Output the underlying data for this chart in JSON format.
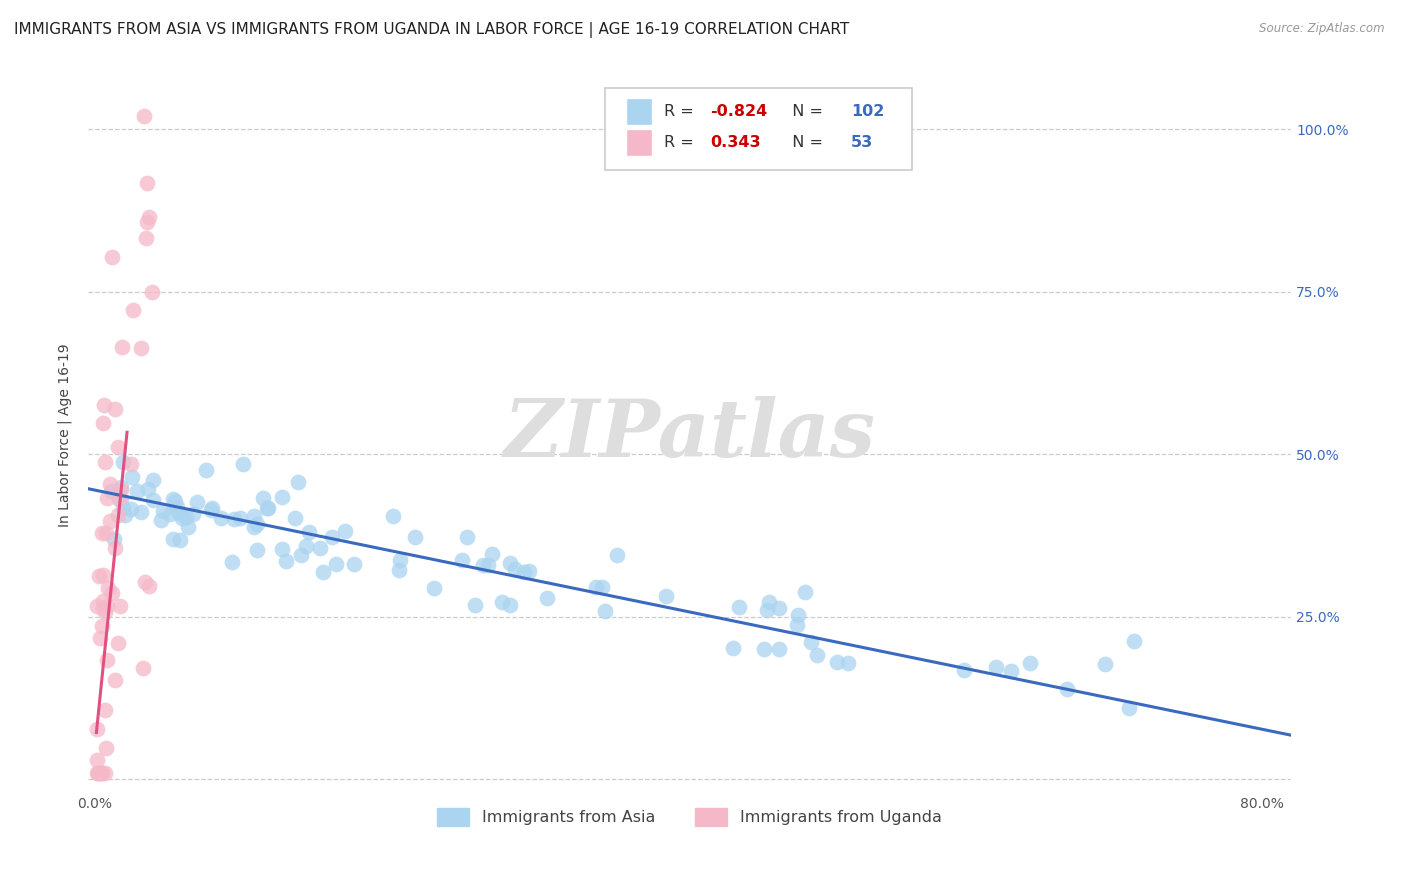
{
  "title": "IMMIGRANTS FROM ASIA VS IMMIGRANTS FROM UGANDA IN LABOR FORCE | AGE 16-19 CORRELATION CHART",
  "source": "Source: ZipAtlas.com",
  "ylabel": "In Labor Force | Age 16-19",
  "xlim": [
    -0.005,
    0.82
  ],
  "ylim": [
    -0.02,
    1.08
  ],
  "xtick_positions": [
    0.0,
    0.8
  ],
  "xticklabels": [
    "0.0%",
    "80.0%"
  ],
  "ytick_positions": [
    0.0,
    0.25,
    0.5,
    0.75,
    1.0
  ],
  "ytick_labels_right": [
    "",
    "25.0%",
    "50.0%",
    "75.0%",
    "100.0%"
  ],
  "watermark": "ZIPatlas",
  "legend_R_blue": "-0.824",
  "legend_N_blue": "102",
  "legend_R_pink": "0.343",
  "legend_N_pink": "53",
  "legend_label_blue": "Immigrants from Asia",
  "legend_label_pink": "Immigrants from Uganda",
  "blue_scatter_color": "#aad4f0",
  "pink_scatter_color": "#f5b8c8",
  "blue_line_color": "#3a6abf",
  "pink_line_color": "#e05080",
  "grid_color": "#cccccc",
  "background_color": "#ffffff",
  "title_fontsize": 11,
  "tick_fontsize": 10,
  "ylabel_fontsize": 10,
  "legend_R_color": "#cc0000",
  "legend_N_color": "#3a6abf",
  "legend_text_color": "#333333",
  "right_tick_color": "#3a6abf",
  "blue_trend_intercept": 0.445,
  "blue_trend_slope": -0.46,
  "pink_trend_intercept": 0.05,
  "pink_trend_slope": 22.0
}
